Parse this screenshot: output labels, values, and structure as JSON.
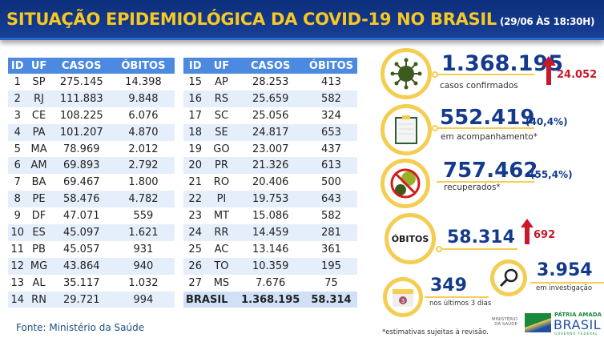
{
  "header": {
    "title": "SITUAÇÃO EPIDEMIOLÓGICA DA COVID-19 NO BRASIL",
    "timestamp": "(29/06 ÀS 18:30H)"
  },
  "table": {
    "columns": [
      "ID",
      "UF",
      "CASOS",
      "ÓBITOS"
    ],
    "left": [
      [
        "1",
        "SP",
        "275.145",
        "14.398"
      ],
      [
        "2",
        "RJ",
        "111.883",
        "9.848"
      ],
      [
        "3",
        "CE",
        "108.225",
        "6.076"
      ],
      [
        "4",
        "PA",
        "101.207",
        "4.870"
      ],
      [
        "5",
        "MA",
        "78.969",
        "2.012"
      ],
      [
        "6",
        "AM",
        "69.893",
        "2.792"
      ],
      [
        "7",
        "BA",
        "69.467",
        "1.800"
      ],
      [
        "8",
        "PE",
        "58.476",
        "4.782"
      ],
      [
        "9",
        "DF",
        "47.071",
        "559"
      ],
      [
        "10",
        "ES",
        "45.097",
        "1.621"
      ],
      [
        "11",
        "PB",
        "45.057",
        "931"
      ],
      [
        "12",
        "MG",
        "43.864",
        "940"
      ],
      [
        "13",
        "AL",
        "35.117",
        "1.032"
      ],
      [
        "14",
        "RN",
        "29.721",
        "994"
      ]
    ],
    "right": [
      [
        "15",
        "AP",
        "28.253",
        "413"
      ],
      [
        "16",
        "RS",
        "25.659",
        "582"
      ],
      [
        "17",
        "SC",
        "25.056",
        "324"
      ],
      [
        "18",
        "SE",
        "24.817",
        "653"
      ],
      [
        "19",
        "GO",
        "23.007",
        "437"
      ],
      [
        "20",
        "PR",
        "21.326",
        "613"
      ],
      [
        "21",
        "RO",
        "20.406",
        "500"
      ],
      [
        "22",
        "PI",
        "19.753",
        "643"
      ],
      [
        "23",
        "MT",
        "15.086",
        "582"
      ],
      [
        "24",
        "RR",
        "14.459",
        "281"
      ],
      [
        "25",
        "AC",
        "13.146",
        "361"
      ],
      [
        "26",
        "TO",
        "10.359",
        "195"
      ],
      [
        "27",
        "MS",
        "7.676",
        "75"
      ]
    ],
    "total": {
      "label": "BRASIL",
      "casos": "1.368.195",
      "obitos": "58.314"
    }
  },
  "source": "Fonte: Ministério da Saúde",
  "stats": {
    "confirmed": {
      "value": "1.368.195",
      "label": "casos confirmados",
      "delta": "24.052",
      "icon": "virus-icon"
    },
    "monitoring": {
      "value": "552.419",
      "pct": "(40,4%)",
      "label": "em acompanhamento*",
      "icon": "clipboard-icon"
    },
    "recovered": {
      "value": "757.462",
      "pct": "(55,4%)",
      "label": "recuperados*",
      "icon": "no-virus-icon"
    },
    "deaths": {
      "circle_label": "ÓBITOS",
      "value": "58.314",
      "delta": "692"
    },
    "investigation": {
      "value": "3.954",
      "label": "em investigação",
      "icon": "magnifier-icon"
    },
    "last3": {
      "value": "349",
      "label": "nos últimos 3 dias",
      "icon": "calendar-icon",
      "badge": "3"
    }
  },
  "footnote": "*estimativas sujeitas à revisão.",
  "logos": {
    "ministry": "MINISTÉRIO DA SAÚDE",
    "brand_top": "PÁTRIA AMADA",
    "brand_main": "BRASIL",
    "brand_sub": "GOVERNO FEDERAL"
  },
  "colors": {
    "navy": "#143a8c",
    "gold": "#f4cd52",
    "red": "#c8182a",
    "table_header": "#4b8ae0"
  }
}
